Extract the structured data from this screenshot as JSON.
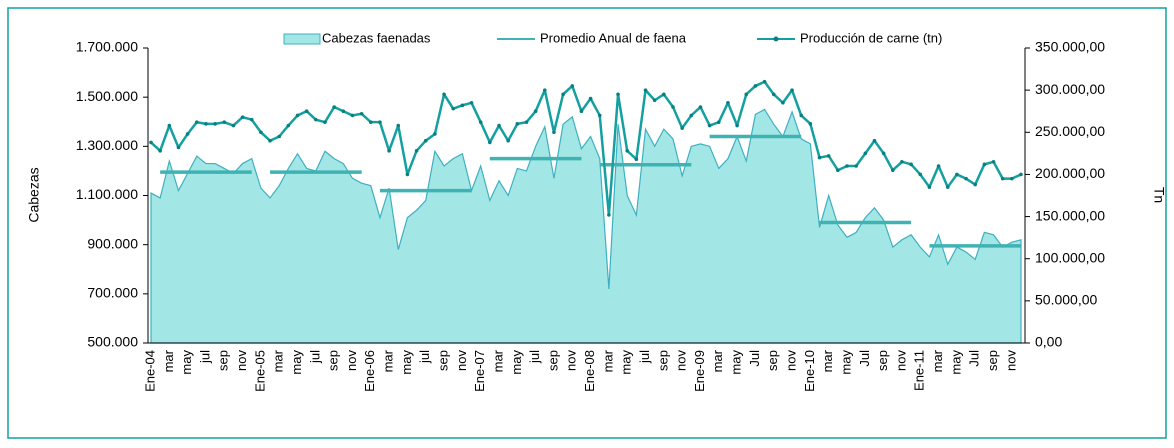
{
  "chart_data": {
    "type": "combo",
    "ylabel": "Cabezas",
    "y2label": "Tn",
    "categories": [
      "Ene-04",
      null,
      "mar",
      null,
      "may",
      null,
      "jul",
      null,
      "sep",
      null,
      "nov",
      null,
      "Ene-05",
      null,
      "mar",
      null,
      "may",
      null,
      "jul",
      null,
      "sep",
      null,
      "nov",
      null,
      "Ene-06",
      null,
      "mar",
      null,
      "may",
      null,
      "jul",
      null,
      "sep",
      null,
      "nov",
      null,
      "Ene-07",
      null,
      "mar",
      null,
      "may",
      null,
      "jul",
      null,
      "sep",
      null,
      "nov",
      null,
      "Ene-08",
      null,
      "mar",
      null,
      "may",
      null,
      "jul",
      null,
      "sep",
      null,
      "nov",
      null,
      "Ene-09",
      null,
      "mar",
      null,
      "may",
      null,
      "Jul",
      null,
      "sep",
      null,
      "nov",
      null,
      "Ene-10",
      null,
      "mar",
      null,
      "may",
      null,
      "Jul",
      null,
      "sep",
      null,
      "nov",
      null,
      "Ene-11",
      null,
      "mar",
      null,
      "may",
      null,
      "Jul",
      null,
      "sep",
      null,
      "nov",
      null
    ],
    "ylim": [
      500000,
      1700000
    ],
    "yticks": [
      {
        "value": 500000,
        "label": "500.000"
      },
      {
        "value": 700000,
        "label": "700.000"
      },
      {
        "value": 900000,
        "label": "900.000"
      },
      {
        "value": 1100000,
        "label": "1.100.000"
      },
      {
        "value": 1300000,
        "label": "1.300.000"
      },
      {
        "value": 1500000,
        "label": "1.500.000"
      },
      {
        "value": 1700000,
        "label": "1.700.000"
      }
    ],
    "y2lim": [
      0,
      350000
    ],
    "y2ticks": [
      {
        "value": 0,
        "label": "0,00"
      },
      {
        "value": 50000,
        "label": "50.000,00"
      },
      {
        "value": 100000,
        "label": "100.000,00"
      },
      {
        "value": 150000,
        "label": "150.000,00"
      },
      {
        "value": 200000,
        "label": "200.000,00"
      },
      {
        "value": 250000,
        "label": "250.000,00"
      },
      {
        "value": 300000,
        "label": "300.000,00"
      },
      {
        "value": 350000,
        "label": "350.000,00"
      }
    ],
    "series": [
      {
        "name": "Cabezas faenadas",
        "type": "area",
        "color": "#a3e6e6",
        "values": [
          1110000,
          1090000,
          1240000,
          1120000,
          1190000,
          1260000,
          1230000,
          1230000,
          1210000,
          1190000,
          1230000,
          1250000,
          1130000,
          1090000,
          1140000,
          1210000,
          1270000,
          1210000,
          1200000,
          1280000,
          1250000,
          1230000,
          1170000,
          1150000,
          1140000,
          1010000,
          1130000,
          880000,
          1010000,
          1040000,
          1080000,
          1280000,
          1220000,
          1250000,
          1270000,
          1120000,
          1220000,
          1080000,
          1160000,
          1100000,
          1210000,
          1200000,
          1300000,
          1380000,
          1170000,
          1390000,
          1420000,
          1290000,
          1340000,
          1250000,
          720000,
          1390000,
          1100000,
          1020000,
          1370000,
          1300000,
          1370000,
          1330000,
          1180000,
          1300000,
          1310000,
          1300000,
          1210000,
          1250000,
          1340000,
          1240000,
          1430000,
          1450000,
          1390000,
          1340000,
          1440000,
          1330000,
          1310000,
          970000,
          1100000,
          980000,
          930000,
          950000,
          1010000,
          1050000,
          1000000,
          890000,
          920000,
          940000,
          890000,
          850000,
          940000,
          820000,
          890000,
          870000,
          840000,
          950000,
          940000,
          890000,
          910000,
          920000
        ]
      },
      {
        "name": "Promedio Anual de faena",
        "type": "line",
        "color": "#3fb3b3",
        "values": [
          null,
          1195000,
          1195000,
          1195000,
          1195000,
          1195000,
          1195000,
          1195000,
          1195000,
          1195000,
          1195000,
          1195000,
          null,
          1195000,
          1195000,
          1195000,
          1195000,
          1195000,
          1195000,
          1195000,
          1195000,
          1195000,
          1195000,
          1195000,
          null,
          1120000,
          1120000,
          1120000,
          1120000,
          1120000,
          1120000,
          1120000,
          1120000,
          1120000,
          1120000,
          1120000,
          null,
          1250000,
          1250000,
          1250000,
          1250000,
          1250000,
          1250000,
          1250000,
          1250000,
          1250000,
          1250000,
          1250000,
          null,
          1225000,
          1225000,
          1225000,
          1225000,
          1225000,
          1225000,
          1225000,
          1225000,
          1225000,
          1225000,
          1225000,
          null,
          1340000,
          1340000,
          1340000,
          1340000,
          1340000,
          1340000,
          1340000,
          1340000,
          1340000,
          1340000,
          1340000,
          null,
          990000,
          990000,
          990000,
          990000,
          990000,
          990000,
          990000,
          990000,
          990000,
          990000,
          990000,
          null,
          895000,
          895000,
          895000,
          895000,
          895000,
          895000,
          895000,
          895000,
          895000,
          895000,
          895000
        ]
      },
      {
        "name": "Producción de carne (tn)",
        "type": "line",
        "marker": true,
        "axis": "y2",
        "color": "#14a0a0",
        "values": [
          238000,
          228000,
          258000,
          232000,
          248000,
          262000,
          260000,
          260000,
          262000,
          258000,
          268000,
          265000,
          250000,
          240000,
          245000,
          258000,
          270000,
          275000,
          265000,
          262000,
          280000,
          275000,
          270000,
          272000,
          262000,
          262000,
          228000,
          258000,
          200000,
          228000,
          240000,
          248000,
          295000,
          278000,
          282000,
          285000,
          262000,
          238000,
          258000,
          240000,
          260000,
          262000,
          275000,
          300000,
          250000,
          295000,
          305000,
          275000,
          290000,
          270000,
          152000,
          295000,
          228000,
          218000,
          300000,
          288000,
          295000,
          280000,
          255000,
          270000,
          280000,
          258000,
          262000,
          285000,
          258000,
          295000,
          305000,
          310000,
          295000,
          285000,
          300000,
          270000,
          260000,
          220000,
          222000,
          205000,
          210000,
          210000,
          225000,
          240000,
          225000,
          205000,
          215000,
          212000,
          200000,
          185000,
          210000,
          185000,
          200000,
          195000,
          188000,
          212000,
          215000,
          195000,
          195000,
          200000
        ]
      }
    ]
  }
}
